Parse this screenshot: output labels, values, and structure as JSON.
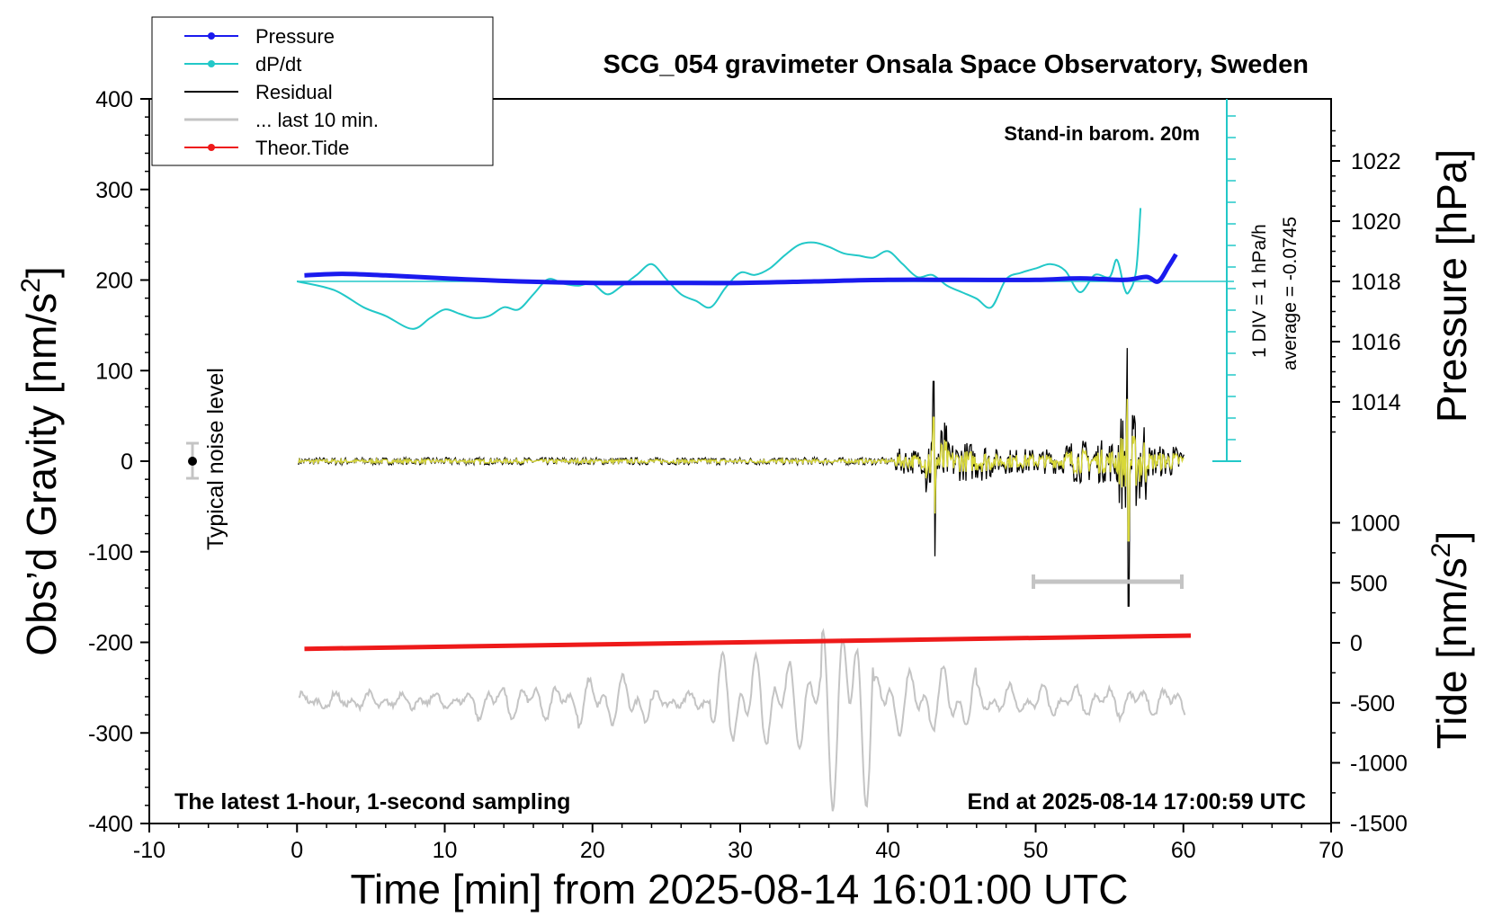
{
  "chart_data": {
    "type": "line",
    "title": "SCG_054 gravimeter Onsala Space Observatory, Sweden",
    "xlabel": "Time [min] from 2025-08-14 16:01:00 UTC",
    "ylabel_left": "Obs’d Gravity [nm/s2]",
    "ylabel_right_top": "Pressure [hPa]",
    "ylabel_right_bottom": "Tide [nm/s2]",
    "xlim": [
      -10,
      70
    ],
    "ylim_left": [
      -400,
      400
    ],
    "x_ticks": [
      "-10",
      "0",
      "10",
      "20",
      "30",
      "40",
      "50",
      "60",
      "70"
    ],
    "y_ticks_left": [
      "400",
      "300",
      "200",
      "100",
      "0",
      "-100",
      "-200",
      "-300",
      "-400"
    ],
    "pressure_ticks": [
      "1022",
      "1020",
      "1018",
      "1016",
      "1014"
    ],
    "tide_ticks": [
      "1000",
      "500",
      "0",
      "-500",
      "-1000",
      "-1500"
    ],
    "annotations": {
      "barometer": "Stand-in barom. 20m",
      "dpdt_scale": "1 DIV = 1 hPa/h",
      "dpdt_average": "average = -0.0745",
      "noise": "Typical noise level",
      "footer_left": "The latest 1-hour, 1-second sampling",
      "footer_right": "End at 2025-08-14 17:00:59 UTC"
    },
    "legend": {
      "position": "top-left",
      "entries": [
        {
          "label": "Pressure",
          "color": "#1a1aee",
          "marker": true
        },
        {
          "label": "dP/dt",
          "color": "#22c8c8",
          "marker": true
        },
        {
          "label": "Residual",
          "color": "#000000",
          "marker": false
        },
        {
          "label": "... last 10 min.",
          "color": "#c4c4c4",
          "marker": false
        },
        {
          "label": "Theor.Tide",
          "color": "#ee1a1a",
          "marker": true
        }
      ]
    },
    "series": [
      {
        "name": "Pressure",
        "color": "#1a1aee",
        "unit": "hPa",
        "x": [
          0.5,
          3,
          6,
          10,
          15,
          20,
          25,
          30,
          35,
          40,
          45,
          50,
          53,
          56,
          57.5,
          58.3,
          59,
          59.5
        ],
        "y": [
          1018.2,
          1018.25,
          1018.2,
          1018.1,
          1018.0,
          1017.95,
          1017.95,
          1017.95,
          1018.0,
          1018.05,
          1018.05,
          1018.05,
          1018.1,
          1018.05,
          1018.15,
          1018.0,
          1018.5,
          1018.9
        ]
      },
      {
        "name": "dP/dt",
        "color": "#22c8c8",
        "unit": "hPa/h",
        "x": [
          0,
          2.5,
          4.5,
          6,
          7.8,
          9,
          10,
          11,
          12,
          13,
          14,
          15,
          16,
          17,
          18,
          19,
          20,
          21,
          22,
          23,
          24,
          25,
          26,
          27,
          28,
          29,
          30,
          31,
          32,
          33,
          34,
          35,
          36,
          37,
          38,
          39,
          40,
          41,
          42,
          43,
          44,
          45,
          46,
          47,
          48,
          49,
          50,
          51,
          52,
          53,
          54,
          55,
          55.5,
          56,
          56.3,
          56.8,
          57.1
        ],
        "y": [
          0,
          -0.4,
          -1.2,
          -1.6,
          -2.2,
          -1.7,
          -1.3,
          -1.5,
          -1.7,
          -1.6,
          -1.2,
          -1.3,
          -0.6,
          0.1,
          -0.1,
          -0.2,
          -0.1,
          -0.6,
          -0.2,
          0.3,
          0.8,
          0.1,
          -0.6,
          -0.9,
          -1.2,
          -0.3,
          0.4,
          0.3,
          0.6,
          1.2,
          1.7,
          1.8,
          1.6,
          1.3,
          1.2,
          1.1,
          1.4,
          0.8,
          0.2,
          0.3,
          -0.2,
          -0.5,
          -0.8,
          -1.2,
          0.1,
          0.4,
          0.6,
          0.8,
          0.5,
          -0.5,
          0.3,
          0.2,
          1.0,
          -0.3,
          -0.5,
          0.5,
          3.4
        ]
      },
      {
        "name": "Residual",
        "color": "#000000",
        "unit": "nm/s2"
      },
      {
        "name": "... last 10 min.",
        "color": "#c4c4c4",
        "unit": "nm/s2"
      },
      {
        "name": "Theor.Tide",
        "color": "#ee1a1a",
        "unit": "nm/s2",
        "x": [
          0.5,
          60.5
        ],
        "y": [
          -50,
          60
        ]
      }
    ],
    "noise_level": {
      "x": -7,
      "y": 0,
      "err": 20
    }
  }
}
